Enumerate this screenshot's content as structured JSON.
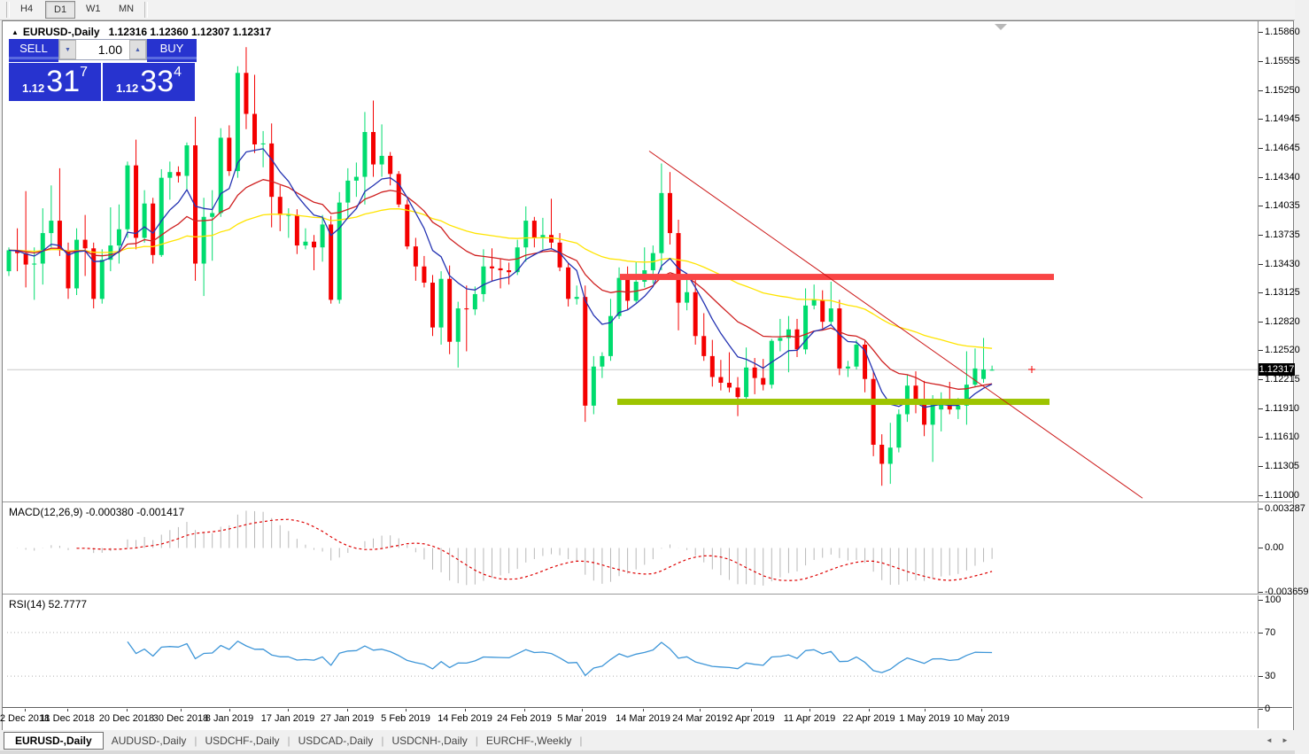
{
  "toolbar": {
    "buttons": [
      {
        "label": "H4",
        "active": false
      },
      {
        "label": "D1",
        "active": true
      },
      {
        "label": "W1",
        "active": false
      },
      {
        "label": "MN",
        "active": false
      }
    ]
  },
  "chart_header": {
    "collapse_icon": "▲",
    "symbol": "EURUSD-,Daily",
    "ohlc": "1.12316 1.12360 1.12307 1.12317"
  },
  "trade_panel": {
    "sell_label": "SELL",
    "buy_label": "BUY",
    "volume": "1.00",
    "spinner_down_icon": "▼",
    "spinner_up_icon": "▲",
    "sell_price": {
      "small": "1.12",
      "big": "31",
      "sup": "7"
    },
    "buy_price": {
      "small": "1.12",
      "big": "33",
      "sup": "4"
    }
  },
  "indicators": {
    "macd_label": "MACD(12,26,9) -0.000380 -0.001417",
    "rsi_label": "RSI(14) 52.7777"
  },
  "tabs": {
    "items": [
      {
        "label": "EURUSD-,Daily",
        "active": true
      },
      {
        "label": "AUDUSD-,Daily",
        "active": false
      },
      {
        "label": "USDCHF-,Daily",
        "active": false
      },
      {
        "label": "USDCAD-,Daily",
        "active": false
      },
      {
        "label": "USDCNH-,Daily",
        "active": false
      },
      {
        "label": "EURCHF-,Weekly",
        "active": false
      }
    ],
    "scroll_left_icon": "◄",
    "scroll_right_icon": "►"
  },
  "colors": {
    "bull": "#00DC6E",
    "bear": "#F40000",
    "ma_blue": "#2433B2",
    "ma_red": "#CF2020",
    "ma_yellow": "#FFE400",
    "macd_hist": "#b8b8b8",
    "macd_signal": "#DE0000",
    "rsi_line": "#3E96D8",
    "resistance": "#F94545",
    "support": "#9DC400",
    "trendline": "#CC1818",
    "hline": "#c8c8c8",
    "level_dotted": "#b0b0b0",
    "scroll_marker": "#b8b8b8"
  },
  "chart_data": {
    "type": "candlestick",
    "title": "EURUSD-,Daily",
    "price": {
      "ylim": [
        1.11,
        1.1586
      ],
      "current_price": 1.12317,
      "current_label": "1.12317",
      "ticks": [
        {
          "label": "1.15860",
          "value": 1.1586
        },
        {
          "label": "1.15555",
          "value": 1.15555
        },
        {
          "label": "1.15250",
          "value": 1.1525
        },
        {
          "label": "1.14945",
          "value": 1.14945
        },
        {
          "label": "1.14645",
          "value": 1.14645
        },
        {
          "label": "1.14340",
          "value": 1.1434
        },
        {
          "label": "1.14035",
          "value": 1.14035
        },
        {
          "label": "1.13735",
          "value": 1.13735
        },
        {
          "label": "1.13430",
          "value": 1.1343
        },
        {
          "label": "1.13125",
          "value": 1.13125
        },
        {
          "label": "1.12820",
          "value": 1.1282
        },
        {
          "label": "1.12520",
          "value": 1.1252
        },
        {
          "label": "1.12215",
          "value": 1.12215
        },
        {
          "label": "1.11910",
          "value": 1.1191
        },
        {
          "label": "1.11610",
          "value": 1.1161
        },
        {
          "label": "1.11305",
          "value": 1.11305
        },
        {
          "label": "1.11000",
          "value": 1.11
        }
      ]
    },
    "date_ticks": [
      {
        "label": "2 Dec 2018",
        "x": 28
      },
      {
        "label": "11 Dec 2018",
        "x": 76
      },
      {
        "label": "20 Dec 2018",
        "x": 143
      },
      {
        "label": "30 Dec 2018",
        "x": 204
      },
      {
        "label": "8 Jan 2019",
        "x": 259
      },
      {
        "label": "17 Jan 2019",
        "x": 325
      },
      {
        "label": "27 Jan 2019",
        "x": 392
      },
      {
        "label": "5 Feb 2019",
        "x": 458
      },
      {
        "label": "14 Feb 2019",
        "x": 525
      },
      {
        "label": "24 Feb 2019",
        "x": 592
      },
      {
        "label": "5 Mar 2019",
        "x": 657
      },
      {
        "label": "14 Mar 2019",
        "x": 726
      },
      {
        "label": "24 Mar 2019",
        "x": 790
      },
      {
        "label": "2 Apr 2019",
        "x": 848
      },
      {
        "label": "11 Apr 2019",
        "x": 914
      },
      {
        "label": "22 Apr 2019",
        "x": 981
      },
      {
        "label": "1 May 2019",
        "x": 1044
      },
      {
        "label": "10 May 2019",
        "x": 1108
      }
    ],
    "candles": [
      [
        1.1335,
        1.136,
        1.133,
        1.1357
      ],
      [
        1.1357,
        1.138,
        1.1335,
        1.1354
      ],
      [
        1.1354,
        1.1419,
        1.1318,
        1.1342
      ],
      [
        1.1342,
        1.136,
        1.1305,
        1.1343
      ],
      [
        1.1343,
        1.1401,
        1.1321,
        1.1375
      ],
      [
        1.1375,
        1.1425,
        1.136,
        1.1388
      ],
      [
        1.1388,
        1.1443,
        1.1351,
        1.1357
      ],
      [
        1.1357,
        1.1365,
        1.1306,
        1.1317
      ],
      [
        1.1317,
        1.138,
        1.131,
        1.1368
      ],
      [
        1.1368,
        1.1394,
        1.133,
        1.1359
      ],
      [
        1.1359,
        1.1365,
        1.1296,
        1.1306
      ],
      [
        1.1306,
        1.1358,
        1.1301,
        1.1347
      ],
      [
        1.1347,
        1.1402,
        1.1335,
        1.1362
      ],
      [
        1.1362,
        1.1405,
        1.1343,
        1.1379
      ],
      [
        1.1379,
        1.145,
        1.137,
        1.1446
      ],
      [
        1.1446,
        1.1473,
        1.1358,
        1.137
      ],
      [
        1.137,
        1.142,
        1.1365,
        1.1406
      ],
      [
        1.1406,
        1.1412,
        1.1343,
        1.1352
      ],
      [
        1.1352,
        1.1442,
        1.135,
        1.1433
      ],
      [
        1.1433,
        1.145,
        1.141,
        1.1439
      ],
      [
        1.1439,
        1.1445,
        1.1428,
        1.1435
      ],
      [
        1.1435,
        1.147,
        1.1421,
        1.1467
      ],
      [
        1.1467,
        1.1497,
        1.1325,
        1.1343
      ],
      [
        1.1343,
        1.1412,
        1.1309,
        1.1392
      ],
      [
        1.1392,
        1.142,
        1.1346,
        1.1396
      ],
      [
        1.1396,
        1.1485,
        1.1392,
        1.1475
      ],
      [
        1.1475,
        1.1488,
        1.1435,
        1.144
      ],
      [
        1.144,
        1.155,
        1.1433,
        1.1543
      ],
      [
        1.1543,
        1.157,
        1.1484,
        1.15
      ],
      [
        1.15,
        1.1541,
        1.1459,
        1.1468
      ],
      [
        1.1468,
        1.1482,
        1.1444,
        1.1469
      ],
      [
        1.1469,
        1.149,
        1.1381,
        1.1413
      ],
      [
        1.1413,
        1.1425,
        1.1377,
        1.1394
      ],
      [
        1.1394,
        1.1401,
        1.137,
        1.1394
      ],
      [
        1.1394,
        1.14,
        1.1353,
        1.1362
      ],
      [
        1.1362,
        1.138,
        1.1358,
        1.1366
      ],
      [
        1.1366,
        1.1373,
        1.1336,
        1.136
      ],
      [
        1.136,
        1.1394,
        1.1345,
        1.1384
      ],
      [
        1.1384,
        1.1393,
        1.1301,
        1.1305
      ],
      [
        1.1305,
        1.1418,
        1.1301,
        1.1407
      ],
      [
        1.1407,
        1.1443,
        1.139,
        1.143
      ],
      [
        1.143,
        1.1449,
        1.1413,
        1.1434
      ],
      [
        1.1434,
        1.1502,
        1.1405,
        1.1481
      ],
      [
        1.1481,
        1.1514,
        1.1434,
        1.1447
      ],
      [
        1.1447,
        1.1489,
        1.1434,
        1.1456
      ],
      [
        1.1456,
        1.146,
        1.1425,
        1.1437
      ],
      [
        1.1437,
        1.144,
        1.1402,
        1.1405
      ],
      [
        1.1405,
        1.141,
        1.1358,
        1.1361
      ],
      [
        1.1361,
        1.137,
        1.1325,
        1.134
      ],
      [
        1.134,
        1.1351,
        1.1318,
        1.1323
      ],
      [
        1.1323,
        1.1331,
        1.1267,
        1.1276
      ],
      [
        1.1276,
        1.1335,
        1.1258,
        1.1327
      ],
      [
        1.1327,
        1.1341,
        1.1248,
        1.1261
      ],
      [
        1.1261,
        1.1303,
        1.1234,
        1.1296
      ],
      [
        1.1296,
        1.132,
        1.1251,
        1.1295
      ],
      [
        1.1295,
        1.1319,
        1.1289,
        1.1311
      ],
      [
        1.1311,
        1.1358,
        1.1303,
        1.134
      ],
      [
        1.134,
        1.1359,
        1.1324,
        1.1338
      ],
      [
        1.1338,
        1.1348,
        1.1317,
        1.1336
      ],
      [
        1.1336,
        1.1344,
        1.1321,
        1.1334
      ],
      [
        1.1334,
        1.1368,
        1.1331,
        1.136
      ],
      [
        1.136,
        1.1403,
        1.1345,
        1.1388
      ],
      [
        1.1388,
        1.1392,
        1.136,
        1.137
      ],
      [
        1.137,
        1.1391,
        1.1358,
        1.1373
      ],
      [
        1.1373,
        1.1411,
        1.1358,
        1.1365
      ],
      [
        1.1365,
        1.1375,
        1.1335,
        1.1339
      ],
      [
        1.1339,
        1.1344,
        1.1298,
        1.1306
      ],
      [
        1.1306,
        1.132,
        1.13,
        1.1308
      ],
      [
        1.1308,
        1.132,
        1.1177,
        1.1194
      ],
      [
        1.1194,
        1.1246,
        1.1185,
        1.1235
      ],
      [
        1.1235,
        1.125,
        1.1223,
        1.1246
      ],
      [
        1.1246,
        1.1306,
        1.1241,
        1.1288
      ],
      [
        1.1288,
        1.1339,
        1.1285,
        1.1328
      ],
      [
        1.1328,
        1.134,
        1.1295,
        1.1304
      ],
      [
        1.1304,
        1.1345,
        1.1302,
        1.1324
      ],
      [
        1.1324,
        1.136,
        1.1318,
        1.1336
      ],
      [
        1.1336,
        1.1362,
        1.1322,
        1.1354
      ],
      [
        1.1354,
        1.1448,
        1.1336,
        1.1417
      ],
      [
        1.1417,
        1.1439,
        1.1363,
        1.1375
      ],
      [
        1.1375,
        1.1389,
        1.1273,
        1.1302
      ],
      [
        1.1302,
        1.133,
        1.1294,
        1.1313
      ],
      [
        1.1313,
        1.1327,
        1.1258,
        1.1267
      ],
      [
        1.1267,
        1.1291,
        1.1241,
        1.1246
      ],
      [
        1.1246,
        1.1263,
        1.1214,
        1.1224
      ],
      [
        1.1224,
        1.1242,
        1.121,
        1.1218
      ],
      [
        1.1218,
        1.125,
        1.1208,
        1.1213
      ],
      [
        1.1213,
        1.1224,
        1.1183,
        1.1203
      ],
      [
        1.1203,
        1.1255,
        1.12,
        1.1234
      ],
      [
        1.1234,
        1.1244,
        1.1206,
        1.1223
      ],
      [
        1.1223,
        1.1243,
        1.121,
        1.1216
      ],
      [
        1.1216,
        1.1264,
        1.1212,
        1.1262
      ],
      [
        1.1262,
        1.1285,
        1.1251,
        1.1265
      ],
      [
        1.1265,
        1.1288,
        1.1229,
        1.1274
      ],
      [
        1.1274,
        1.1285,
        1.1245,
        1.1253
      ],
      [
        1.1253,
        1.1317,
        1.1248,
        1.1299
      ],
      [
        1.1299,
        1.1321,
        1.1295,
        1.1305
      ],
      [
        1.1305,
        1.1315,
        1.1275,
        1.1282
      ],
      [
        1.1282,
        1.1324,
        1.1278,
        1.1296
      ],
      [
        1.1296,
        1.1305,
        1.1226,
        1.1233
      ],
      [
        1.1233,
        1.1241,
        1.1224,
        1.1235
      ],
      [
        1.1235,
        1.1263,
        1.1232,
        1.1258
      ],
      [
        1.1258,
        1.1262,
        1.1208,
        1.1222
      ],
      [
        1.1222,
        1.123,
        1.1141,
        1.1153
      ],
      [
        1.1153,
        1.1164,
        1.111,
        1.1133
      ],
      [
        1.1133,
        1.1176,
        1.1112,
        1.115
      ],
      [
        1.115,
        1.119,
        1.1145,
        1.1185
      ],
      [
        1.1185,
        1.1226,
        1.1177,
        1.1215
      ],
      [
        1.1215,
        1.123,
        1.1186,
        1.1195
      ],
      [
        1.1195,
        1.122,
        1.1162,
        1.1174
      ],
      [
        1.1174,
        1.1205,
        1.1135,
        1.12
      ],
      [
        1.119,
        1.1208,
        1.1167,
        1.1201
      ],
      [
        1.1201,
        1.1219,
        1.1185,
        1.119
      ],
      [
        1.119,
        1.1202,
        1.118,
        1.1194
      ],
      [
        1.1194,
        1.1251,
        1.1174,
        1.1216
      ],
      [
        1.1216,
        1.1254,
        1.1214,
        1.1233
      ],
      [
        1.1222,
        1.1265,
        1.1218,
        1.1232
      ],
      [
        1.12316,
        1.1236,
        1.12307,
        1.12317
      ]
    ],
    "moving_averages": [
      {
        "name": "fast",
        "period": 8,
        "color_key": "ma_blue"
      },
      {
        "name": "medium",
        "period": 20,
        "color_key": "ma_red"
      },
      {
        "name": "slow",
        "period": 55,
        "color_key": "ma_yellow"
      }
    ],
    "macd": {
      "fast": 12,
      "slow": 26,
      "signal": 9,
      "value": -0.00038,
      "signal_value": -0.001417,
      "ylim": [
        -0.003659,
        0.003287
      ],
      "axis_ticks": [
        {
          "label": "0.003287",
          "value": 0.003287
        },
        {
          "label": "0.00",
          "value": 0.0
        },
        {
          "label": "-0.003659",
          "value": -0.003659
        }
      ]
    },
    "rsi": {
      "period": 14,
      "value": 52.7777,
      "levels": [
        70,
        30
      ],
      "axis_ticks": [
        {
          "label": "100",
          "value": 100
        },
        {
          "label": "70",
          "value": 70
        },
        {
          "label": "30",
          "value": 30
        },
        {
          "label": "0",
          "value": 0
        }
      ]
    },
    "objects": {
      "resistance_bar": {
        "price": 1.1329,
        "x1": 700,
        "x2": 1190,
        "thickness": 7
      },
      "support_bar": {
        "price": 1.1198,
        "x1": 697,
        "x2": 1185,
        "thickness": 7
      },
      "trendline": {
        "x1": 733,
        "price1": 1.1461,
        "x2": 1290,
        "price2": 1.1097
      },
      "hline": {
        "price": 1.12317
      },
      "marker_cross": {
        "x": 1165,
        "price": 1.1232
      }
    }
  }
}
